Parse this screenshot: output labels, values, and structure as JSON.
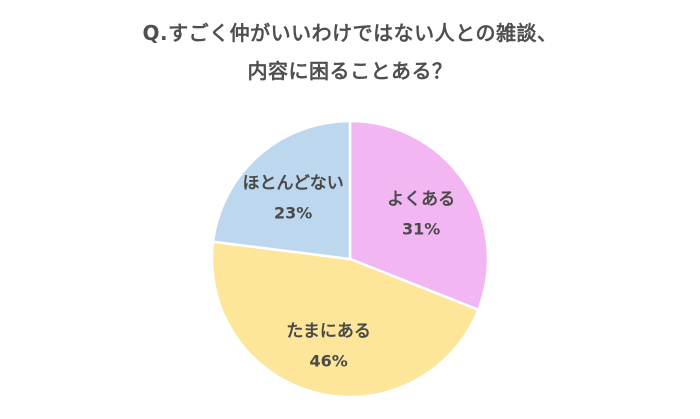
{
  "chart_data": {
    "type": "pie",
    "title_lines": [
      "Q.すごく仲がいいわけではない人との雑談、",
      "内容に困ることある？"
    ],
    "slices": [
      {
        "label": "よくある",
        "value": 31,
        "value_label": "31%",
        "color": "#f2b6f2"
      },
      {
        "label": "たまにある",
        "value": 46,
        "value_label": "46%",
        "color": "#fde59a"
      },
      {
        "label": "ほとんどない",
        "value": 23,
        "value_label": "23%",
        "color": "#bcd7ee"
      }
    ]
  }
}
